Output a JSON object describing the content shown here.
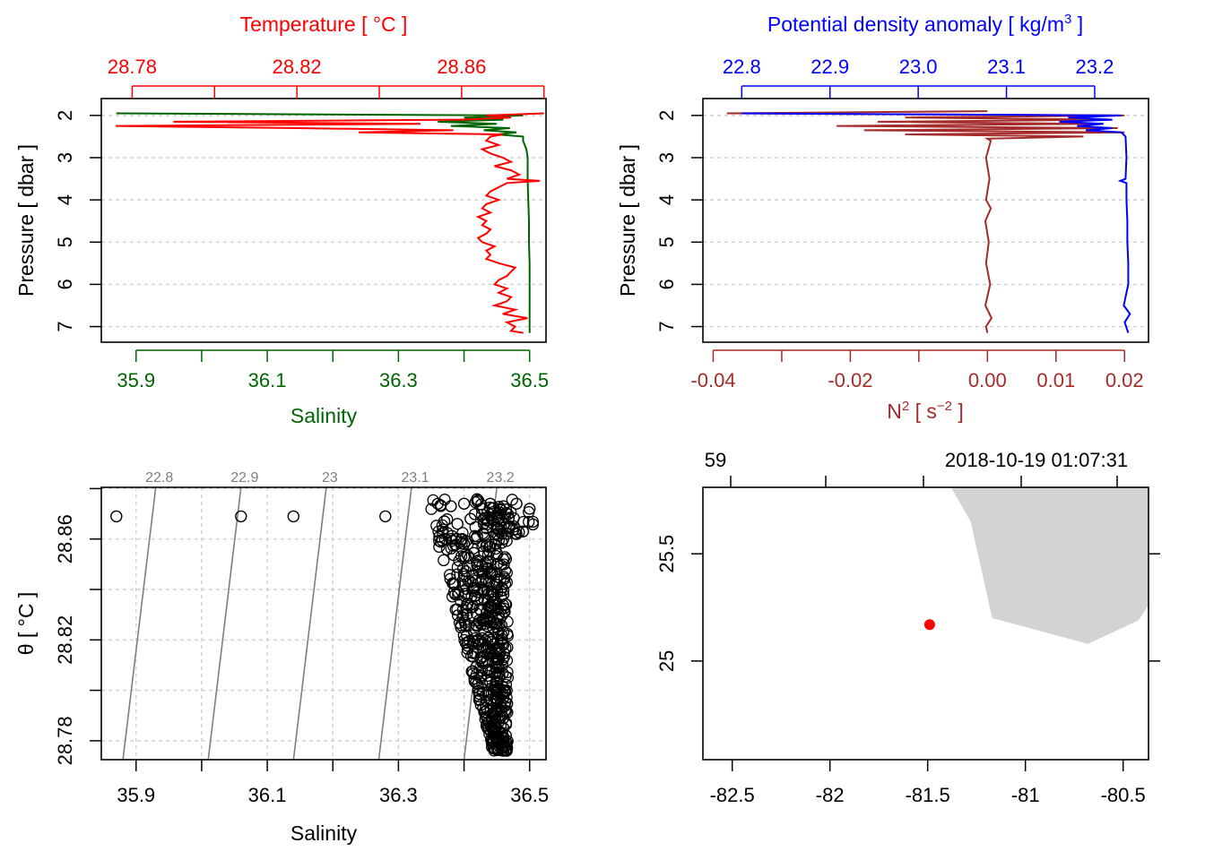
{
  "colors": {
    "temperature": "#ff0000",
    "salinity": "#006400",
    "density": "#0000ff",
    "n2": "#a52a2a",
    "isopycnal": "#7f7f7f",
    "grid": "#c8c8c8",
    "land": "#d3d3d3",
    "station": "#ff0000"
  },
  "chart_data": [
    {
      "id": "profile-TS",
      "type": "line",
      "title": "Temperature [ °C ]",
      "xlabel_top": "Temperature [ °C ]",
      "xlabel_bottom": "Salinity",
      "ylabel": "Pressure [ dbar ]",
      "top_ticks": [
        "28.78",
        "28.82",
        "28.86"
      ],
      "top_tick_values": [
        28.78,
        28.8,
        28.82,
        28.84,
        28.86,
        28.88
      ],
      "top_range": [
        28.7725,
        28.8805
      ],
      "bottom_ticks": [
        "35.9",
        "36.1",
        "36.3",
        "36.5"
      ],
      "bottom_tick_values": [
        35.9,
        36.0,
        36.1,
        36.2,
        36.3,
        36.4,
        36.5
      ],
      "bottom_range": [
        35.847,
        36.525
      ],
      "y_ticks": [
        "2",
        "3",
        "4",
        "5",
        "6",
        "7"
      ],
      "y_tick_values": [
        2,
        3,
        4,
        5,
        6,
        7
      ],
      "y_range": [
        7.37,
        1.6
      ],
      "series": [
        {
          "name": "Temperature",
          "pressure": [
            1.95,
            2.0,
            2.05,
            2.1,
            2.15,
            2.2,
            2.25,
            2.3,
            2.35,
            2.4,
            2.45,
            2.5,
            2.6,
            2.7,
            2.8,
            2.9,
            3.0,
            3.1,
            3.2,
            3.3,
            3.4,
            3.5,
            3.55,
            3.6,
            3.7,
            3.8,
            3.9,
            4.0,
            4.1,
            4.2,
            4.3,
            4.4,
            4.5,
            4.6,
            4.7,
            4.8,
            4.9,
            5.0,
            5.1,
            5.2,
            5.3,
            5.4,
            5.5,
            5.6,
            5.7,
            5.8,
            5.9,
            6.0,
            6.1,
            6.2,
            6.3,
            6.4,
            6.5,
            6.6,
            6.7,
            6.8,
            6.9,
            7.0,
            7.1,
            7.15
          ],
          "values": [
            28.88,
            28.866,
            28.872,
            28.86,
            28.79,
            28.85,
            28.776,
            28.82,
            28.858,
            28.835,
            28.87,
            28.867,
            28.866,
            28.869,
            28.865,
            28.867,
            28.87,
            28.872,
            28.868,
            28.872,
            28.874,
            28.871,
            28.879,
            28.871,
            28.869,
            28.867,
            28.866,
            28.869,
            28.866,
            28.865,
            28.867,
            28.864,
            28.866,
            28.865,
            28.867,
            28.866,
            28.864,
            28.865,
            28.868,
            28.866,
            28.867,
            28.866,
            28.869,
            28.873,
            28.872,
            28.871,
            28.869,
            28.868,
            28.871,
            28.869,
            28.872,
            28.871,
            28.868,
            28.873,
            28.87,
            28.876,
            28.871,
            28.873,
            28.872,
            28.875
          ]
        },
        {
          "name": "Salinity",
          "pressure": [
            1.95,
            2.0,
            2.05,
            2.1,
            2.15,
            2.2,
            2.25,
            2.3,
            2.35,
            2.4,
            2.45,
            2.5,
            2.6,
            2.8,
            3.0,
            3.5,
            4.0,
            4.5,
            5.0,
            5.5,
            6.0,
            6.5,
            7.0,
            7.15
          ],
          "values": [
            35.87,
            36.49,
            36.4,
            36.46,
            36.36,
            36.45,
            36.38,
            36.47,
            36.43,
            36.48,
            36.45,
            36.49,
            36.49,
            36.495,
            36.497,
            36.497,
            36.498,
            36.499,
            36.499,
            36.5,
            36.5,
            36.5,
            36.5,
            36.5
          ]
        }
      ]
    },
    {
      "id": "profile-density",
      "type": "line",
      "title": "Potential density anomaly [ kg/m3 ]",
      "xlabel_top_main": "Potential density anomaly [ kg/m",
      "xlabel_top_sup": "3",
      "xlabel_top_end": " ]",
      "xlabel_bottom_main": "N",
      "xlabel_bottom_sup": "2",
      "xlabel_bottom_mid": " [ s",
      "xlabel_bottom_sup2": "−2",
      "xlabel_bottom_end": " ]",
      "ylabel": "Pressure [ dbar ]",
      "top_ticks": [
        "22.8",
        "22.9",
        "23.0",
        "23.1",
        "23.2"
      ],
      "top_tick_values": [
        22.8,
        22.9,
        23.0,
        23.1,
        23.2
      ],
      "top_range": [
        22.756,
        23.261
      ],
      "bottom_ticks": [
        "-0.04",
        "-0.02",
        "0.00",
        "0.01",
        "0.02"
      ],
      "bottom_tick_values": [
        -0.04,
        -0.03,
        -0.02,
        -0.01,
        0.0,
        0.01,
        0.02
      ],
      "bottom_range": [
        -0.0415,
        0.0235
      ],
      "y_ticks": [
        "2",
        "3",
        "4",
        "5",
        "6",
        "7"
      ],
      "y_tick_values": [
        2,
        3,
        4,
        5,
        6,
        7
      ],
      "y_range": [
        7.37,
        1.6
      ],
      "series": [
        {
          "name": "Potential density anomaly",
          "pressure": [
            1.95,
            2.0,
            2.05,
            2.1,
            2.15,
            2.2,
            2.25,
            2.3,
            2.35,
            2.4,
            2.5,
            3.0,
            3.5,
            3.55,
            3.6,
            4.0,
            4.5,
            5.0,
            5.5,
            6.0,
            6.5,
            6.7,
            6.9,
            7.15
          ],
          "values": [
            22.8,
            23.23,
            23.17,
            23.22,
            23.16,
            23.21,
            23.18,
            23.22,
            23.19,
            23.23,
            23.235,
            23.236,
            23.235,
            23.229,
            23.236,
            23.236,
            23.237,
            23.237,
            23.238,
            23.238,
            23.233,
            23.24,
            23.234,
            23.238
          ]
        },
        {
          "name": "N2",
          "pressure": [
            1.9,
            1.95,
            2.0,
            2.05,
            2.1,
            2.15,
            2.2,
            2.25,
            2.3,
            2.35,
            2.4,
            2.45,
            2.5,
            2.55,
            2.6,
            3.0,
            3.5,
            4.0,
            4.2,
            4.5,
            5.0,
            5.5,
            6.0,
            6.5,
            6.8,
            7.0,
            7.15
          ],
          "values": [
            0.0,
            -0.038,
            0.02,
            -0.012,
            0.018,
            -0.016,
            0.015,
            -0.022,
            0.019,
            -0.018,
            0.02,
            -0.012,
            0.014,
            0.0,
            0.0005,
            -0.0002,
            0.0003,
            -0.0002,
            0.0005,
            -0.0003,
            0.0002,
            -0.0002,
            0.0004,
            -0.0003,
            0.0006,
            -0.0002,
            0.0
          ]
        }
      ]
    },
    {
      "id": "ts-diagram",
      "type": "scatter",
      "xlabel": "Salinity",
      "ylabel": "θ [ °C ]",
      "x_ticks": [
        "35.9",
        "36.1",
        "36.3",
        "36.5"
      ],
      "x_tick_values": [
        35.9,
        36.0,
        36.1,
        36.2,
        36.3,
        36.4,
        36.5
      ],
      "x_range": [
        35.847,
        36.525
      ],
      "y_ticks": [
        "28.78",
        "28.82",
        "28.86"
      ],
      "y_tick_values": [
        28.78,
        28.8,
        28.82,
        28.84,
        28.86,
        28.88
      ],
      "y_range": [
        28.7725,
        28.8805
      ],
      "isopycnals": [
        {
          "label": "22.8",
          "s_bottom": 35.88,
          "s_top": 35.93
        },
        {
          "label": "22.9",
          "s_bottom": 36.01,
          "s_top": 36.06
        },
        {
          "label": "23",
          "s_bottom": 36.14,
          "s_top": 36.19
        },
        {
          "label": "23.1",
          "s_bottom": 36.27,
          "s_top": 36.32
        },
        {
          "label": "23.2",
          "s_bottom": 36.4,
          "s_top": 36.45
        }
      ],
      "points_s": [
        35.87,
        36.06,
        36.14,
        36.28,
        36.36,
        36.38,
        36.4,
        36.42,
        36.44,
        36.46,
        36.48,
        36.5,
        36.37,
        36.39,
        36.41,
        36.43,
        36.45,
        36.47,
        36.49,
        36.38,
        36.4,
        36.42,
        36.44,
        36.46,
        36.48,
        36.4,
        36.42,
        36.44,
        36.46,
        36.41,
        36.43,
        36.45,
        36.42,
        36.44,
        36.46,
        36.43,
        36.45,
        36.44,
        36.46,
        36.44,
        36.45,
        36.46,
        36.45,
        36.44,
        36.45,
        36.46,
        36.45,
        36.46,
        36.46,
        36.45,
        36.46
      ],
      "points_t": [
        28.869,
        28.869,
        28.869,
        28.869,
        28.874,
        28.873,
        28.874,
        28.875,
        28.874,
        28.873,
        28.874,
        28.872,
        28.867,
        28.866,
        28.868,
        28.866,
        28.869,
        28.865,
        28.863,
        28.86,
        28.858,
        28.861,
        28.857,
        28.86,
        28.862,
        28.853,
        28.85,
        28.847,
        28.852,
        28.843,
        28.84,
        28.845,
        28.836,
        28.833,
        28.838,
        28.828,
        28.825,
        28.82,
        28.823,
        28.815,
        28.812,
        28.818,
        28.806,
        28.803,
        28.8,
        28.797,
        28.792,
        28.789,
        28.785,
        28.78,
        28.776
      ]
    },
    {
      "id": "map",
      "type": "scatter",
      "top_left_label": "59",
      "top_right_label": "2018-10-19 01:07:31",
      "x_ticks": [
        "-82.5",
        "-82",
        "-81.5",
        "-81",
        "-80.5"
      ],
      "x_tick_values": [
        -82.5,
        -82.0,
        -81.5,
        -81.0,
        -80.5
      ],
      "x_range": [
        -82.65,
        -80.37
      ],
      "y_ticks": [
        "25.5",
        "25"
      ],
      "y_tick_values": [
        25.5,
        25.0
      ],
      "y_range": [
        24.54,
        25.81
      ],
      "land_lon": [
        -81.38,
        -81.28,
        -81.17,
        -80.68,
        -80.42,
        -80.37,
        -80.37
      ],
      "land_lat": [
        25.81,
        25.65,
        25.2,
        25.08,
        25.19,
        25.26,
        25.81
      ],
      "station": {
        "lon": -81.49,
        "lat": 25.17
      }
    }
  ]
}
